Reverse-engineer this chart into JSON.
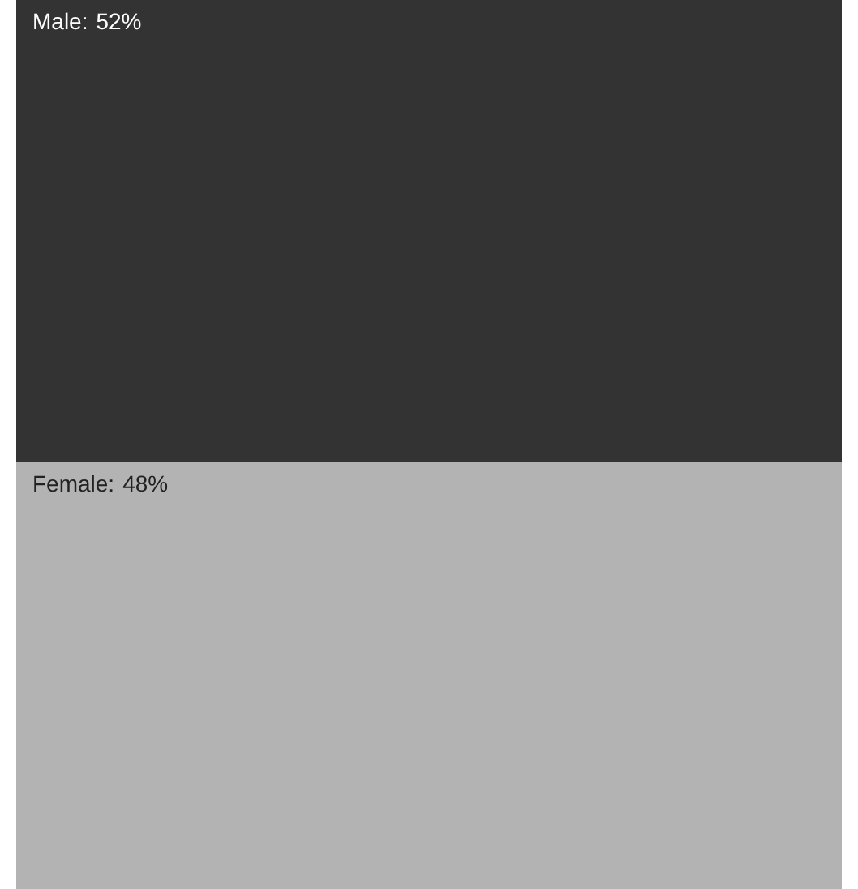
{
  "chart_data": {
    "type": "bar",
    "stacked": true,
    "categories": [
      null
    ],
    "series": [
      {
        "name": "Female:",
        "color": "#b3b3b3",
        "values": [
          48
        ],
        "value_labels": [
          "48%"
        ]
      },
      {
        "name": "Male:",
        "color": "#333333",
        "values": [
          52
        ],
        "value_labels": [
          "52%"
        ]
      }
    ]
  }
}
